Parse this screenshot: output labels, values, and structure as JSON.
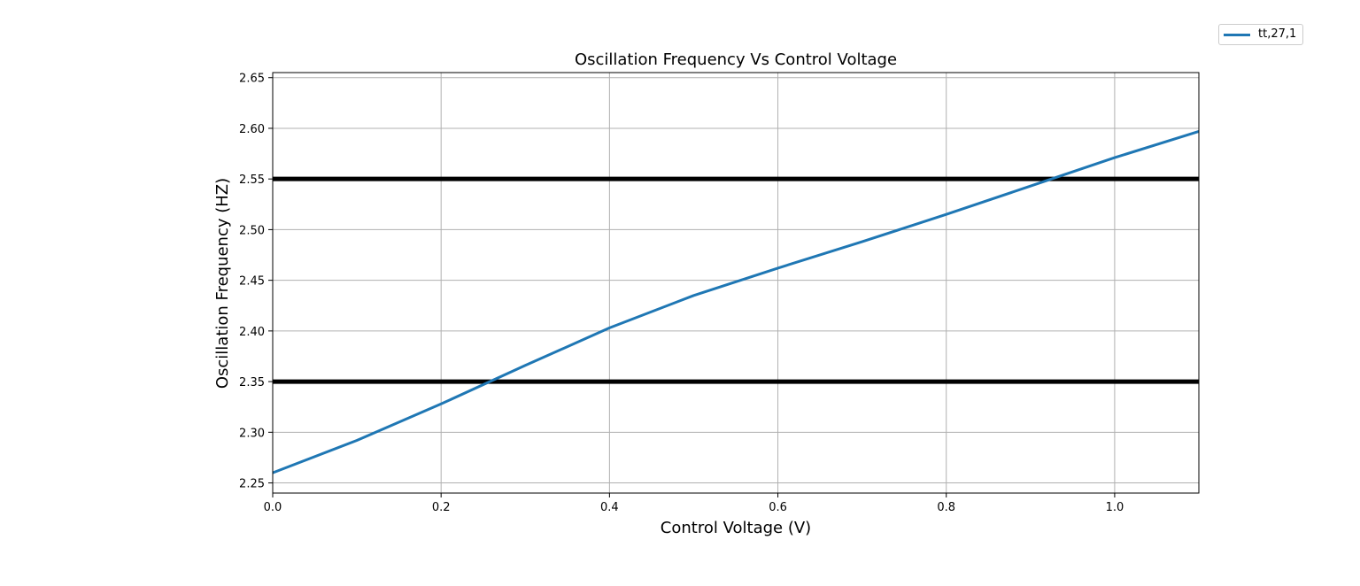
{
  "chart_data": {
    "type": "line",
    "title": "Oscillation Frequency Vs Control Voltage",
    "xlabel": "Control Voltage (V)",
    "ylabel": "Oscillation Frequency (HZ)",
    "xlim": [
      0.0,
      1.1
    ],
    "ylim": [
      2.24,
      2.655
    ],
    "xticks": [
      "0.0",
      "0.2",
      "0.4",
      "0.6",
      "0.8",
      "1.0"
    ],
    "yticks": [
      "2.25",
      "2.30",
      "2.35",
      "2.40",
      "2.45",
      "2.50",
      "2.55",
      "2.60",
      "2.65"
    ],
    "grid": true,
    "legend_position": "top-right",
    "series": [
      {
        "name": "tt,27,1",
        "color": "#1f77b4",
        "x": [
          0.0,
          0.1,
          0.2,
          0.3,
          0.4,
          0.5,
          0.6,
          0.7,
          0.8,
          0.9,
          1.0,
          1.1
        ],
        "y": [
          2.26,
          2.292,
          2.328,
          2.366,
          2.403,
          2.435,
          2.462,
          2.488,
          2.515,
          2.543,
          2.571,
          2.597
        ]
      }
    ],
    "hlines": [
      {
        "y": 2.55,
        "color": "#000000"
      },
      {
        "y": 2.35,
        "color": "#000000"
      }
    ]
  }
}
